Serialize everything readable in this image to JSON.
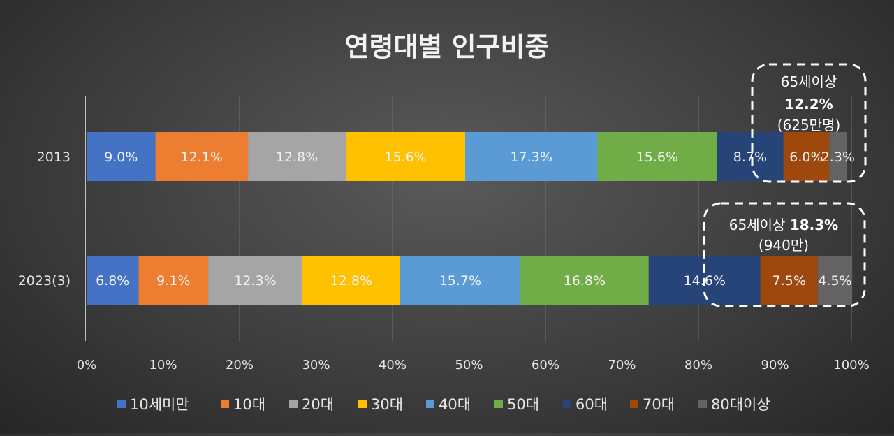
{
  "chart_data": {
    "type": "bar",
    "orientation": "horizontal",
    "stacked": "percent",
    "title": "연령대별 인구비중",
    "categories": [
      "2013",
      "2023(3)"
    ],
    "series": [
      {
        "name": "10세미만",
        "color": "#4472c4",
        "values": [
          9.0,
          6.8
        ],
        "labels": [
          "9.0%",
          "6.8%"
        ]
      },
      {
        "name": "10대",
        "color": "#ed7d31",
        "values": [
          12.1,
          9.1
        ],
        "labels": [
          "12.1%",
          "9.1%"
        ]
      },
      {
        "name": "20대",
        "color": "#a5a5a5",
        "values": [
          12.8,
          12.3
        ],
        "labels": [
          "12.8%",
          "12.3%"
        ]
      },
      {
        "name": "30대",
        "color": "#ffc000",
        "values": [
          15.6,
          12.8
        ],
        "labels": [
          "15.6%",
          "12.8%"
        ]
      },
      {
        "name": "40대",
        "color": "#5b9bd5",
        "values": [
          17.3,
          15.7
        ],
        "labels": [
          "17.3%",
          "15.7%"
        ]
      },
      {
        "name": "50대",
        "color": "#70ad47",
        "values": [
          15.6,
          16.8
        ],
        "labels": [
          "15.6%",
          "16.8%"
        ]
      },
      {
        "name": "60대",
        "color": "#264478",
        "values": [
          8.7,
          14.6
        ],
        "labels": [
          "8.7%",
          "14.6%"
        ]
      },
      {
        "name": "70대",
        "color": "#9e480e",
        "values": [
          6.0,
          7.5
        ],
        "labels": [
          "6.0%",
          "7.5%"
        ]
      },
      {
        "name": "80대이상",
        "color": "#636363",
        "values": [
          2.3,
          4.5
        ],
        "labels": [
          "2.3%",
          "4.5%"
        ]
      }
    ],
    "xlim": [
      0,
      100
    ],
    "x_ticks": [
      "0%",
      "10%",
      "20%",
      "30%",
      "40%",
      "50%",
      "60%",
      "70%",
      "80%",
      "90%",
      "100%"
    ],
    "grid": true,
    "legend_position": "bottom",
    "annotations": [
      {
        "category": "2013",
        "line1": "65세이상",
        "bold": "12.2%",
        "line3": "(625만명)"
      },
      {
        "category": "2023(3)",
        "line1": "65세이상",
        "bold": "18.3%",
        "line3": "(940만)"
      }
    ]
  }
}
